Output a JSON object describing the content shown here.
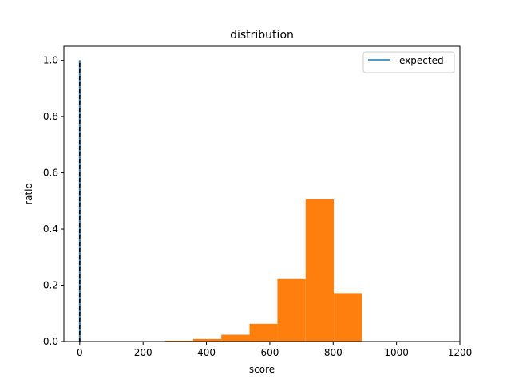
{
  "chart_data": {
    "type": "bar",
    "title": "distribution",
    "xlabel": "score",
    "ylabel": "ratio",
    "xlim": [
      -50,
      1200
    ],
    "ylim": [
      0,
      1.05
    ],
    "xticks": [
      0,
      200,
      400,
      600,
      800,
      1000,
      1200
    ],
    "yticks": [
      0.0,
      0.2,
      0.4,
      0.6,
      0.8,
      1.0
    ],
    "xtick_labels": [
      "0",
      "200",
      "400",
      "600",
      "800",
      "1000",
      "1200"
    ],
    "ytick_labels": [
      "0.0",
      "0.2",
      "0.4",
      "0.6",
      "0.8",
      "1.0"
    ],
    "histogram": {
      "color": "#ff7f0e",
      "bins": [
        {
          "x0": 270,
          "x1": 358,
          "value": 0.003
        },
        {
          "x0": 358,
          "x1": 447,
          "value": 0.009
        },
        {
          "x0": 447,
          "x1": 536,
          "value": 0.024
        },
        {
          "x0": 536,
          "x1": 624,
          "value": 0.063
        },
        {
          "x0": 624,
          "x1": 713,
          "value": 0.222
        },
        {
          "x0": 713,
          "x1": 802,
          "value": 0.506
        },
        {
          "x0": 802,
          "x1": 891,
          "value": 0.172
        }
      ]
    },
    "expected": {
      "name": "expected",
      "x": 0,
      "y0": 0,
      "y1": 1.0,
      "color": "#1f77b4",
      "dash_color": "#000000"
    },
    "legend": {
      "position": "top-right",
      "entries": [
        "expected"
      ]
    },
    "grid": false
  }
}
